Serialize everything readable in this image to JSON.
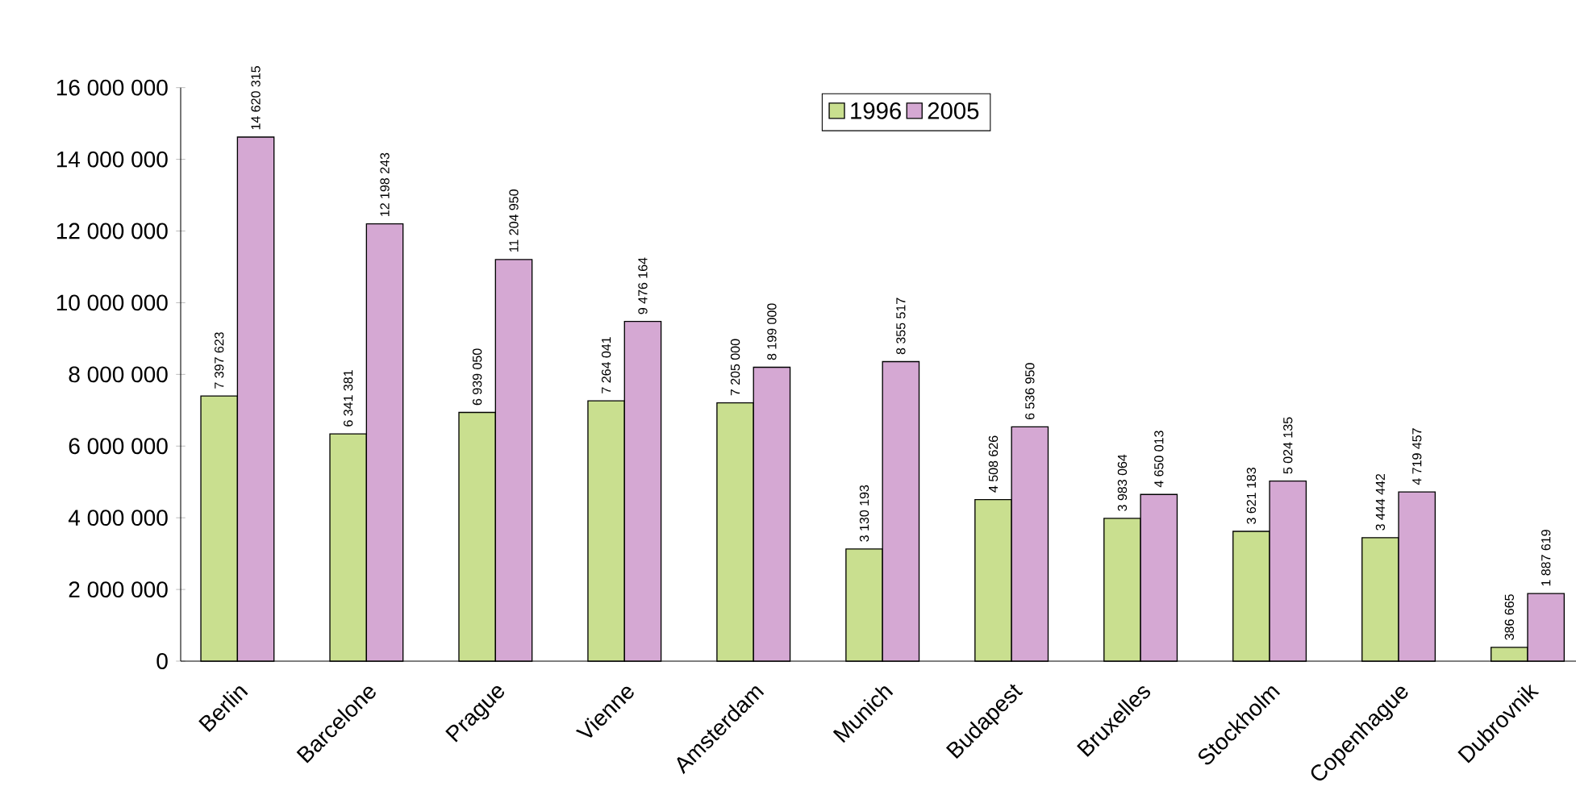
{
  "chart_data": {
    "type": "bar",
    "categories": [
      "Berlin",
      "Barcelone",
      "Prague",
      "Vienne",
      "Amsterdam",
      "Munich",
      "Budapest",
      "Bruxelles",
      "Stockholm",
      "Copenhague",
      "Dubrovnik"
    ],
    "series": [
      {
        "name": "1996",
        "color": "#c9df8f",
        "values": [
          7397623,
          6341381,
          6939050,
          7264041,
          7205000,
          3130193,
          4508626,
          3983064,
          3621183,
          3444442,
          386665
        ],
        "value_labels": [
          "7 397 623",
          "6 341 381",
          "6 939 050",
          "7 264 041",
          "7 205 000",
          "3 130 193",
          "4 508 626",
          "3 983 064",
          "3 621 183",
          "3 444 442",
          "386 665"
        ]
      },
      {
        "name": "2005",
        "color": "#d5a8d3",
        "values": [
          14620315,
          12198243,
          11204950,
          9476164,
          8199000,
          8355517,
          6536950,
          4650013,
          5024135,
          4719457,
          1887619
        ],
        "value_labels": [
          "14 620 315",
          "12 198 243",
          "11 204 950",
          "9 476 164",
          "8 199 000",
          "8 355 517",
          "6 536 950",
          "4 650 013",
          "5 024 135",
          "4 719 457",
          "1 887 619"
        ]
      }
    ],
    "ylim": [
      0,
      16000000
    ],
    "yticks": [
      {
        "value": 0,
        "label": "0"
      },
      {
        "value": 2000000,
        "label": "2 000 000"
      },
      {
        "value": 4000000,
        "label": "4 000 000"
      },
      {
        "value": 6000000,
        "label": "6 000 000"
      },
      {
        "value": 8000000,
        "label": "8 000 000"
      },
      {
        "value": 10000000,
        "label": "10 000 000"
      },
      {
        "value": 12000000,
        "label": "12 000 000"
      },
      {
        "value": 14000000,
        "label": "14 000 000"
      },
      {
        "value": 16000000,
        "label": "16 000 000"
      }
    ],
    "legend": "top",
    "grid": false
  }
}
